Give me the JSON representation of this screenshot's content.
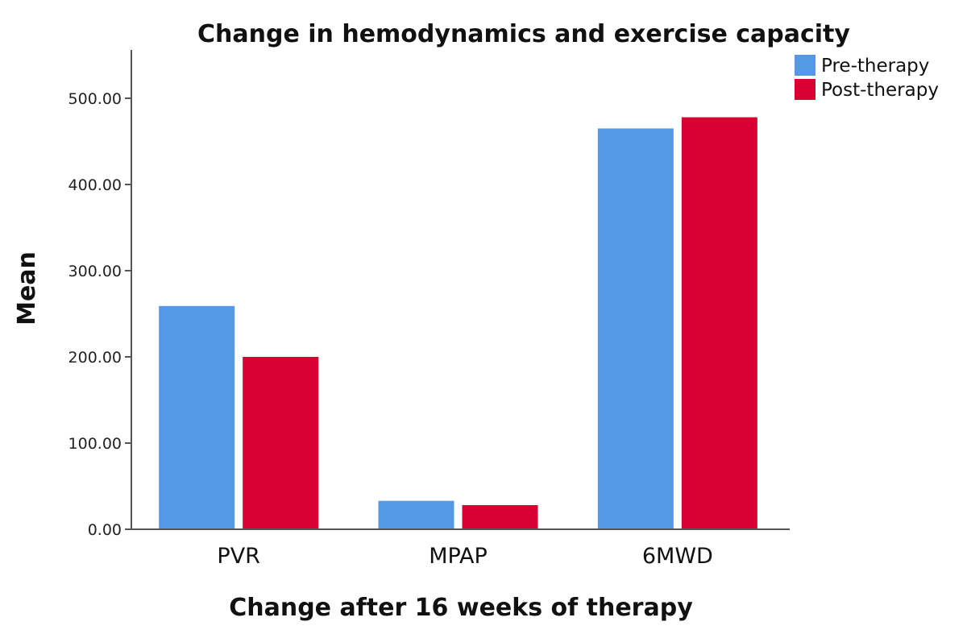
{
  "chart_data": {
    "type": "bar",
    "title": "Change in hemodynamics and exercise capacity",
    "xlabel": "Change after 16 weeks of therapy",
    "ylabel": "Mean",
    "categories": [
      "PVR",
      "MPAP",
      "6MWD"
    ],
    "series": [
      {
        "name": "Pre-therapy",
        "color": "#5599E6",
        "values": [
          259,
          33,
          465
        ]
      },
      {
        "name": "Post-therapy",
        "color": "#D90032",
        "values": [
          200,
          28,
          478
        ]
      }
    ],
    "ylim": [
      0,
      555
    ],
    "yticks": [
      "0.00",
      "100.00",
      "200.00",
      "300.00",
      "400.00",
      "500.00"
    ],
    "ytick_values": [
      0,
      100,
      200,
      300,
      400,
      500
    ],
    "legend_position": "top-right",
    "grid": false
  }
}
